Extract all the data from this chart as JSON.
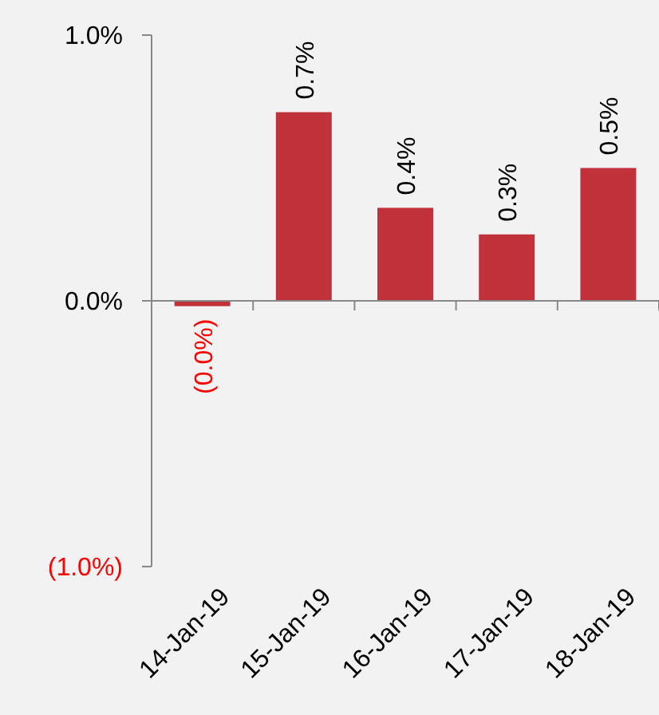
{
  "chart_data": {
    "type": "bar",
    "categories": [
      "14-Jan-19",
      "15-Jan-19",
      "16-Jan-19",
      "17-Jan-19",
      "18-Jan-19"
    ],
    "values": [
      -0.02,
      0.71,
      0.35,
      0.25,
      0.5
    ],
    "value_labels": [
      "(0.0%)",
      "0.7%",
      "0.4%",
      "0.3%",
      "0.5%"
    ],
    "color": "#c0313a",
    "ylim": [
      -1,
      1
    ],
    "yticks": [
      {
        "value": -1,
        "label": "(1.0%)"
      },
      {
        "value": 0,
        "label": "0.0%"
      },
      {
        "value": 1,
        "label": "1.0%"
      }
    ]
  }
}
